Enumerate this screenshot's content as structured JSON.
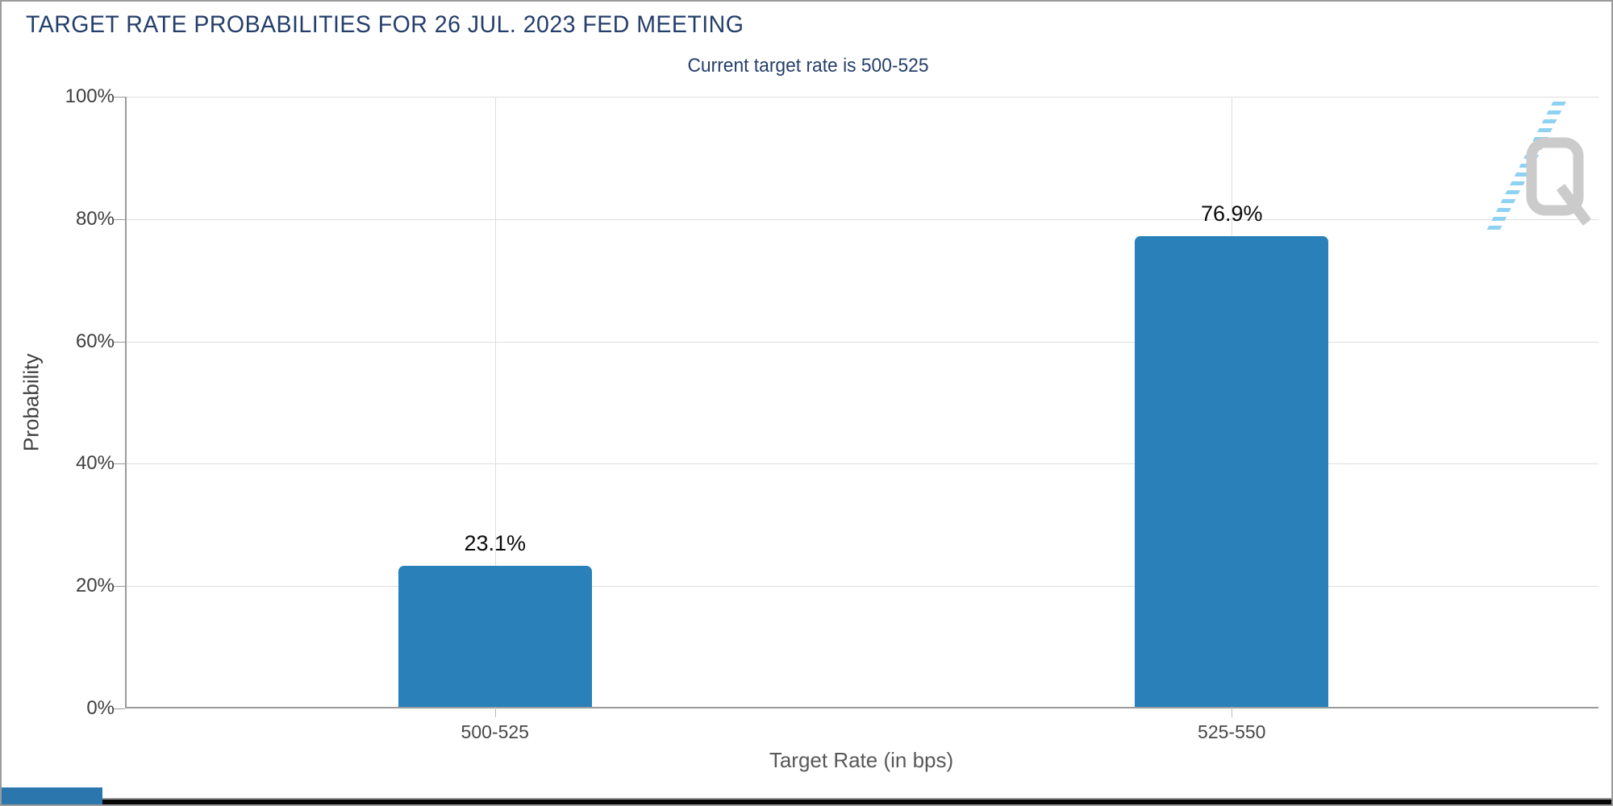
{
  "header": {
    "title": "TARGET RATE PROBABILITIES FOR 26 JUL. 2023 FED MEETING",
    "subtitle": "Current target rate is 500-525",
    "title_color": "#243e6b"
  },
  "chart_data": {
    "type": "bar",
    "title": "TARGET RATE PROBABILITIES FOR 26 JUL. 2023 FED MEETING",
    "subtitle": "Current target rate is 500-525",
    "categories": [
      "500-525",
      "525-550"
    ],
    "values": [
      23.1,
      76.9
    ],
    "value_labels": [
      "23.1%",
      "76.9%"
    ],
    "xlabel": "Target Rate (in bps)",
    "ylabel": "Probability",
    "ylim": [
      0,
      100
    ],
    "ytick_labels": [
      "100%",
      "80%",
      "60%",
      "40%",
      "20%",
      "0%"
    ],
    "grid": true,
    "legend": "none",
    "bar_color": "#2a81ba",
    "axis_color": "#9a9a9a",
    "gridline_color": "#dedede",
    "tick_label_color": "#3f3f3f"
  },
  "watermark": {
    "name": "quikstrike-q-logo",
    "letter": "Q",
    "glyph_color": "#cbcbcb",
    "stripe_color": "#88cff2"
  },
  "window": {
    "border_color": "#9b9b9b",
    "bottom_strip_color": "#060606",
    "corner_accent_color": "#2b76ad"
  }
}
